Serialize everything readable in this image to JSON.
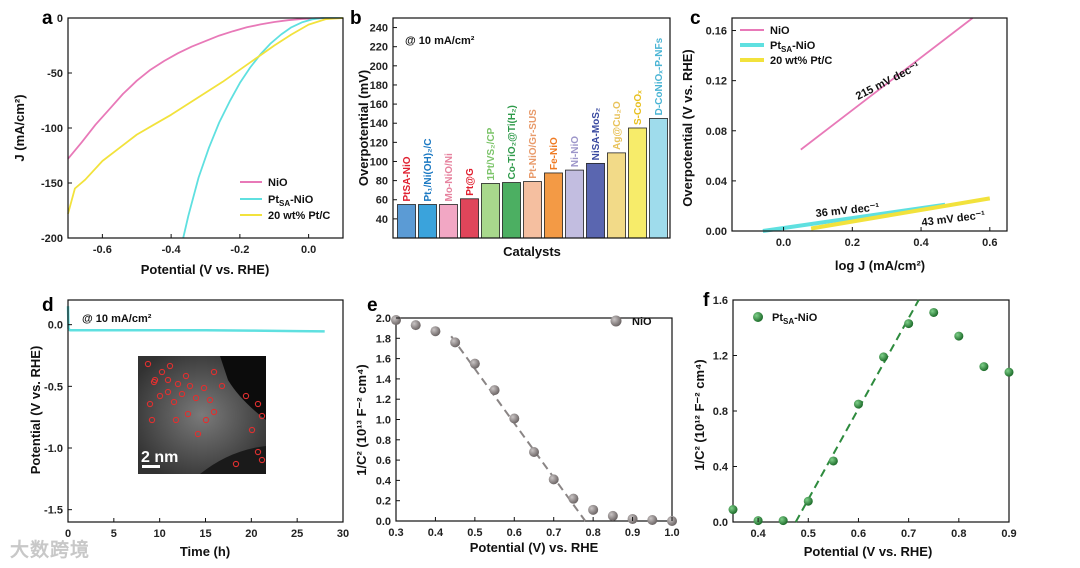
{
  "watermark": "大数跨境",
  "chart_data": [
    {
      "panel": "a",
      "type": "line",
      "xlabel": "Potential (V vs. RHE)",
      "ylabel": "J (mA/cm²)",
      "xlim": [
        -0.7,
        0.1
      ],
      "ylim": [
        -200,
        0
      ],
      "xticks": [
        "-0.6",
        "-0.4",
        "-0.2",
        "0.0"
      ],
      "yticks": [
        "0",
        "-50",
        "-100",
        "-150",
        "-200"
      ],
      "legend": "bottom-right",
      "series": [
        {
          "name": "NiO",
          "color": "#e879b8",
          "x": [
            -0.7,
            -0.66,
            -0.62,
            -0.58,
            -0.54,
            -0.5,
            -0.46,
            -0.42,
            -0.38,
            -0.34,
            -0.3,
            -0.26,
            -0.22,
            -0.18,
            -0.14,
            -0.1,
            -0.06,
            -0.02,
            0.02,
            0.06,
            0.1
          ],
          "y": [
            -128,
            -113,
            -97,
            -83,
            -69,
            -57,
            -47,
            -39,
            -32,
            -26,
            -21,
            -16,
            -12,
            -8.5,
            -5.8,
            -3.6,
            -2,
            -0.9,
            -0.3,
            0,
            0
          ]
        },
        {
          "name": "Pt_SA-NiO",
          "color": "#5fe0e0",
          "x": [
            -0.365,
            -0.35,
            -0.32,
            -0.29,
            -0.26,
            -0.23,
            -0.2,
            -0.17,
            -0.14,
            -0.11,
            -0.08,
            -0.05,
            -0.02,
            0.01,
            0.04,
            0.07,
            0.1
          ],
          "y": [
            -200,
            -180,
            -145,
            -118,
            -95,
            -76,
            -59,
            -45,
            -33,
            -23,
            -15,
            -8.5,
            -4,
            -1.3,
            0,
            0,
            0
          ]
        },
        {
          "name": "20 wt% Pt/C",
          "color": "#f2e23c",
          "x": [
            -0.7,
            -0.68,
            -0.65,
            -0.6,
            -0.55,
            -0.5,
            -0.45,
            -0.4,
            -0.35,
            -0.3,
            -0.25,
            -0.2,
            -0.15,
            -0.1,
            -0.05,
            0.0,
            0.05,
            0.1
          ],
          "y": [
            -178,
            -155,
            -147,
            -130,
            -118,
            -106,
            -97,
            -88,
            -78,
            -68,
            -58,
            -47,
            -36,
            -25,
            -15,
            -6,
            -1,
            0
          ]
        }
      ]
    },
    {
      "panel": "b",
      "type": "bar",
      "title": "@ 10 mA/cm²",
      "xlabel": "Catalysts",
      "ylabel": "Overpotential (mV)",
      "ylim": [
        20,
        250
      ],
      "yticks": [
        "40",
        "60",
        "80",
        "100",
        "120",
        "140",
        "160",
        "180",
        "200",
        "220",
        "240"
      ],
      "categories": [
        "Pt_SA-NiO",
        "Pt_1/Ni(OH)_2/C",
        "Mo-NiO/Ni",
        "Pt@G",
        "1Pt/VS_2/CP",
        "Co-TiO_2@Ti(H_2)",
        "Pt-NiO/Gr-SUS",
        "Fe-NiO",
        "Ni-NiO",
        "NiSA-MoS_2",
        "Ag@Cu_2O",
        "S-CoO_x",
        "D-CoNiO_x-P-NFs"
      ],
      "category_labels": [
        "PtSA-NiO",
        "Pt₁/Ni(OH)₂/C",
        "Mo-NiO/Ni",
        "Pt@G",
        "1Pt/VS₂/CP",
        "Co-TiO₂@Ti(H₂)",
        "Pt-NiO/Gr-SUS",
        "Fe-NiO",
        "Ni-NiO",
        "NiSA-MoS₂",
        "Ag@Cu₂O",
        "S-CoOₓ",
        "D-CoNiOₓ-P-NFs"
      ],
      "values": [
        55,
        55,
        55,
        61,
        77,
        78,
        79,
        88,
        91,
        98,
        109,
        135,
        145
      ],
      "colors": [
        "#5b9bd5",
        "#3aa3dc",
        "#f2a7c4",
        "#e0455a",
        "#a8d88c",
        "#4caf62",
        "#f5bfa0",
        "#f39a45",
        "#c2bde0",
        "#5a66b0",
        "#f2da88",
        "#f7ec6a",
        "#9fdcec"
      ],
      "label_colors": [
        "#e02030",
        "#1a78c2",
        "#e6829e",
        "#e02030",
        "#7cc46a",
        "#2e9a4a",
        "#e89a6a",
        "#ef7a22",
        "#9c95c9",
        "#3a4aa0",
        "#e8c25a",
        "#e8c020",
        "#4ab4d4"
      ]
    },
    {
      "panel": "c",
      "type": "line",
      "xlabel": "log J (mA/cm²)",
      "ylabel": "Overpotential (V vs. RHE)",
      "xlim": [
        -0.15,
        0.65
      ],
      "ylim": [
        0,
        0.17
      ],
      "xticks": [
        "0.0",
        "0.2",
        "0.4",
        "0.6"
      ],
      "yticks": [
        "0.00",
        "0.04",
        "0.08",
        "0.12",
        "0.16"
      ],
      "legend": "top-left",
      "annotations": [
        "215 mV dec⁻¹",
        "36 mV dec⁻¹",
        "43 mV dec⁻¹"
      ],
      "series": [
        {
          "name": "NiO",
          "color": "#e879b8",
          "x": [
            0.05,
            0.55
          ],
          "y": [
            0.065,
            0.17
          ]
        },
        {
          "name": "Pt_SA-NiO",
          "color": "#5fe0e0",
          "x": [
            -0.06,
            0.47
          ],
          "y": [
            0.0,
            0.021
          ]
        },
        {
          "name": "20 wt% Pt/C",
          "color": "#f2e23c",
          "x": [
            0.08,
            0.6
          ],
          "y": [
            0.002,
            0.026
          ]
        }
      ]
    },
    {
      "panel": "d",
      "type": "line",
      "title": "@ 10 mA/cm²",
      "xlabel": "Time (h)",
      "ylabel": "Potential (V vs. RHE)",
      "xlim": [
        0,
        30
      ],
      "ylim": [
        -1.6,
        0.2
      ],
      "xticks": [
        "0",
        "5",
        "10",
        "15",
        "20",
        "25",
        "30"
      ],
      "yticks": [
        "0.0",
        "-0.5",
        "-1.0",
        "-1.5"
      ],
      "inset_scale": "2 nm",
      "series": [
        {
          "name": "",
          "color": "#5fe0e0",
          "x": [
            0,
            0.05,
            0.2,
            1,
            5,
            10,
            15,
            20,
            25,
            28
          ],
          "y": [
            0.15,
            -0.03,
            -0.045,
            -0.045,
            -0.045,
            -0.045,
            -0.046,
            -0.048,
            -0.052,
            -0.055
          ]
        }
      ]
    },
    {
      "panel": "e",
      "type": "scatter",
      "xlabel": "Potential (V) vs. RHE",
      "ylabel": "1/C² (10¹³ F⁻² cm⁴)",
      "xlim": [
        0.3,
        1.0
      ],
      "ylim": [
        0,
        2.0
      ],
      "xticks": [
        "0.3",
        "0.4",
        "0.5",
        "0.6",
        "0.7",
        "0.8",
        "0.9",
        "1.0"
      ],
      "yticks": [
        "0.0",
        "0.2",
        "0.4",
        "0.6",
        "0.8",
        "1.0",
        "1.2",
        "1.4",
        "1.6",
        "1.8",
        "2.0"
      ],
      "legend": "top-right",
      "series": [
        {
          "name": "NiO",
          "color": "#8a8585",
          "x": [
            0.3,
            0.35,
            0.4,
            0.45,
            0.5,
            0.55,
            0.6,
            0.65,
            0.7,
            0.75,
            0.8,
            0.85,
            0.9,
            0.95,
            1.0
          ],
          "y": [
            1.98,
            1.93,
            1.87,
            1.76,
            1.55,
            1.29,
            1.01,
            0.68,
            0.41,
            0.22,
            0.11,
            0.05,
            0.02,
            0.01,
            0.0
          ]
        }
      ],
      "fit": {
        "x": [
          0.44,
          0.78
        ],
        "y": [
          1.82,
          0.0
        ]
      }
    },
    {
      "panel": "f",
      "type": "scatter",
      "xlabel": "Potential (V vs. RHE)",
      "ylabel": "1/C² (10¹² F⁻² cm⁴)",
      "xlim": [
        0.35,
        0.9
      ],
      "ylim": [
        0,
        1.6
      ],
      "xticks": [
        "0.4",
        "0.5",
        "0.6",
        "0.7",
        "0.8",
        "0.9"
      ],
      "yticks": [
        "0.0",
        "0.4",
        "0.8",
        "1.2",
        "1.6"
      ],
      "legend": "top-left",
      "series": [
        {
          "name": "Pt_SA-NiO",
          "color": "#2e8b3e",
          "x": [
            0.35,
            0.4,
            0.45,
            0.5,
            0.55,
            0.6,
            0.65,
            0.7,
            0.75,
            0.8,
            0.85,
            0.9
          ],
          "y": [
            0.09,
            0.01,
            0.01,
            0.15,
            0.44,
            0.85,
            1.19,
            1.43,
            1.51,
            1.34,
            1.12,
            1.08
          ]
        }
      ],
      "fit": {
        "x": [
          0.475,
          0.72
        ],
        "y": [
          0.0,
          1.6
        ]
      }
    }
  ]
}
